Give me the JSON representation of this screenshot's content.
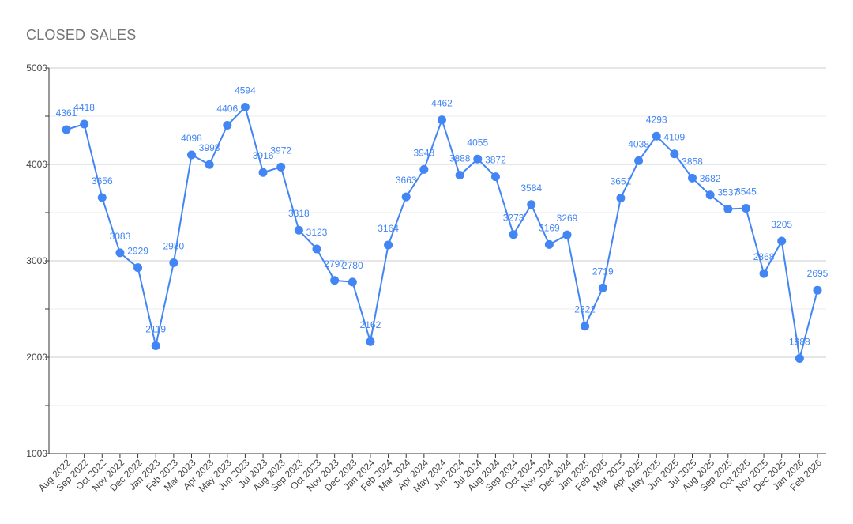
{
  "chart_data": {
    "type": "line",
    "title": "CLOSED SALES",
    "xlabel": "",
    "ylabel": "",
    "ylim": [
      1000,
      5000
    ],
    "yticks": [
      1000,
      2000,
      3000,
      4000,
      5000
    ],
    "grid": true,
    "legend": "none",
    "color": "#4285f4",
    "categories": [
      "Aug 2022",
      "Sep 2022",
      "Oct 2022",
      "Nov 2022",
      "Dec 2022",
      "Jan 2023",
      "Feb 2023",
      "Mar 2023",
      "Apr 2023",
      "May 2023",
      "Jun 2023",
      "Jul 2023",
      "Aug 2023",
      "Sep 2023",
      "Oct 2023",
      "Nov 2023",
      "Dec 2023",
      "Jan 2024",
      "Feb 2024",
      "Mar 2024",
      "Apr 2024",
      "May 2024",
      "Jun 2024",
      "Jul 2024",
      "Aug 2024",
      "Sep 2024",
      "Oct 2024",
      "Nov 2024",
      "Dec 2024",
      "Jan 2025",
      "Feb 2025",
      "Mar 2025",
      "Apr 2025",
      "May 2025",
      "Jun 2025",
      "Jul 2025",
      "Aug 2025",
      "Sep 2025",
      "Oct 2025",
      "Nov 2025",
      "Dec 2025",
      "Jan 2026",
      "Feb 2026"
    ],
    "values": [
      4361,
      4418,
      3656,
      3083,
      2929,
      2119,
      2980,
      4098,
      3998,
      4406,
      4594,
      3916,
      3972,
      3318,
      3123,
      2797,
      2780,
      2162,
      3164,
      3663,
      3948,
      4462,
      3888,
      4055,
      3872,
      3273,
      3584,
      3169,
      3269,
      2322,
      2719,
      3651,
      4038,
      4293,
      4109,
      3858,
      3682,
      3537,
      3545,
      2868,
      3205,
      1988,
      2695
    ]
  }
}
